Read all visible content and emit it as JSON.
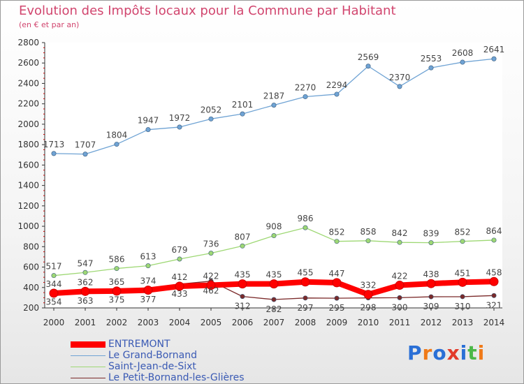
{
  "title": "Evolution des Impôts locaux pour la Commune par Habitant",
  "subtitle": "(en € et par an)",
  "logo_text": "Proxiti",
  "chart_data": {
    "type": "line",
    "title": "Evolution des Impôts locaux pour la Commune par Habitant",
    "subtitle": "(en € et par an)",
    "categories": [
      "2000",
      "2001",
      "2002",
      "2003",
      "2004",
      "2005",
      "2006",
      "2007",
      "2008",
      "2009",
      "2010",
      "2011",
      "2012",
      "2013",
      "2014"
    ],
    "ylim": [
      200,
      2800
    ],
    "yticks": [
      200,
      400,
      600,
      800,
      1000,
      1200,
      1400,
      1600,
      1800,
      2000,
      2200,
      2400,
      2600,
      2800
    ],
    "grid": false,
    "legend_position": "bottom-left",
    "series": [
      {
        "name": "ENTREMONT",
        "color": "#ff0000",
        "values": [
          344,
          362,
          365,
          374,
          412,
          422,
          435,
          435,
          455,
          447,
          332,
          422,
          438,
          451,
          458
        ],
        "labels": [
          "344",
          "362",
          "365",
          "374",
          "412",
          "422",
          "435",
          "435",
          "455",
          "447",
          "332",
          "422",
          "438",
          "451",
          "458"
        ]
      },
      {
        "name": "Le Grand-Bornand",
        "color": "#6fa3d4",
        "values": [
          1713,
          1707,
          1804,
          1947,
          1972,
          2052,
          2101,
          2187,
          2270,
          2294,
          2569,
          2370,
          2553,
          2608,
          2641
        ],
        "labels": [
          "1713",
          "1707",
          "1804",
          "1947",
          "1972",
          "2052",
          "2101",
          "2187",
          "2270",
          "2294",
          "2569",
          "2370",
          "2553",
          "2608",
          "2641"
        ]
      },
      {
        "name": "Saint-Jean-de-Sixt",
        "color": "#9ed874",
        "values": [
          517,
          547,
          586,
          613,
          679,
          736,
          807,
          908,
          986,
          852,
          858,
          842,
          839,
          852,
          864
        ],
        "labels": [
          "517",
          "547",
          "586",
          "613",
          "679",
          "736",
          "807",
          "908",
          "986",
          "852",
          "858",
          "842",
          "839",
          "852",
          "864"
        ]
      },
      {
        "name": "Le Petit-Bornand-les-Glières",
        "color": "#7b2a2a",
        "values": [
          354,
          363,
          375,
          377,
          433,
          462,
          312,
          282,
          297,
          295,
          298,
          300,
          309,
          310,
          321
        ],
        "labels": [
          "354",
          "363",
          "375",
          "377",
          "433",
          "462",
          "312",
          "282",
          "297",
          "295",
          "298",
          "300",
          "309",
          "310",
          "321"
        ]
      }
    ]
  }
}
